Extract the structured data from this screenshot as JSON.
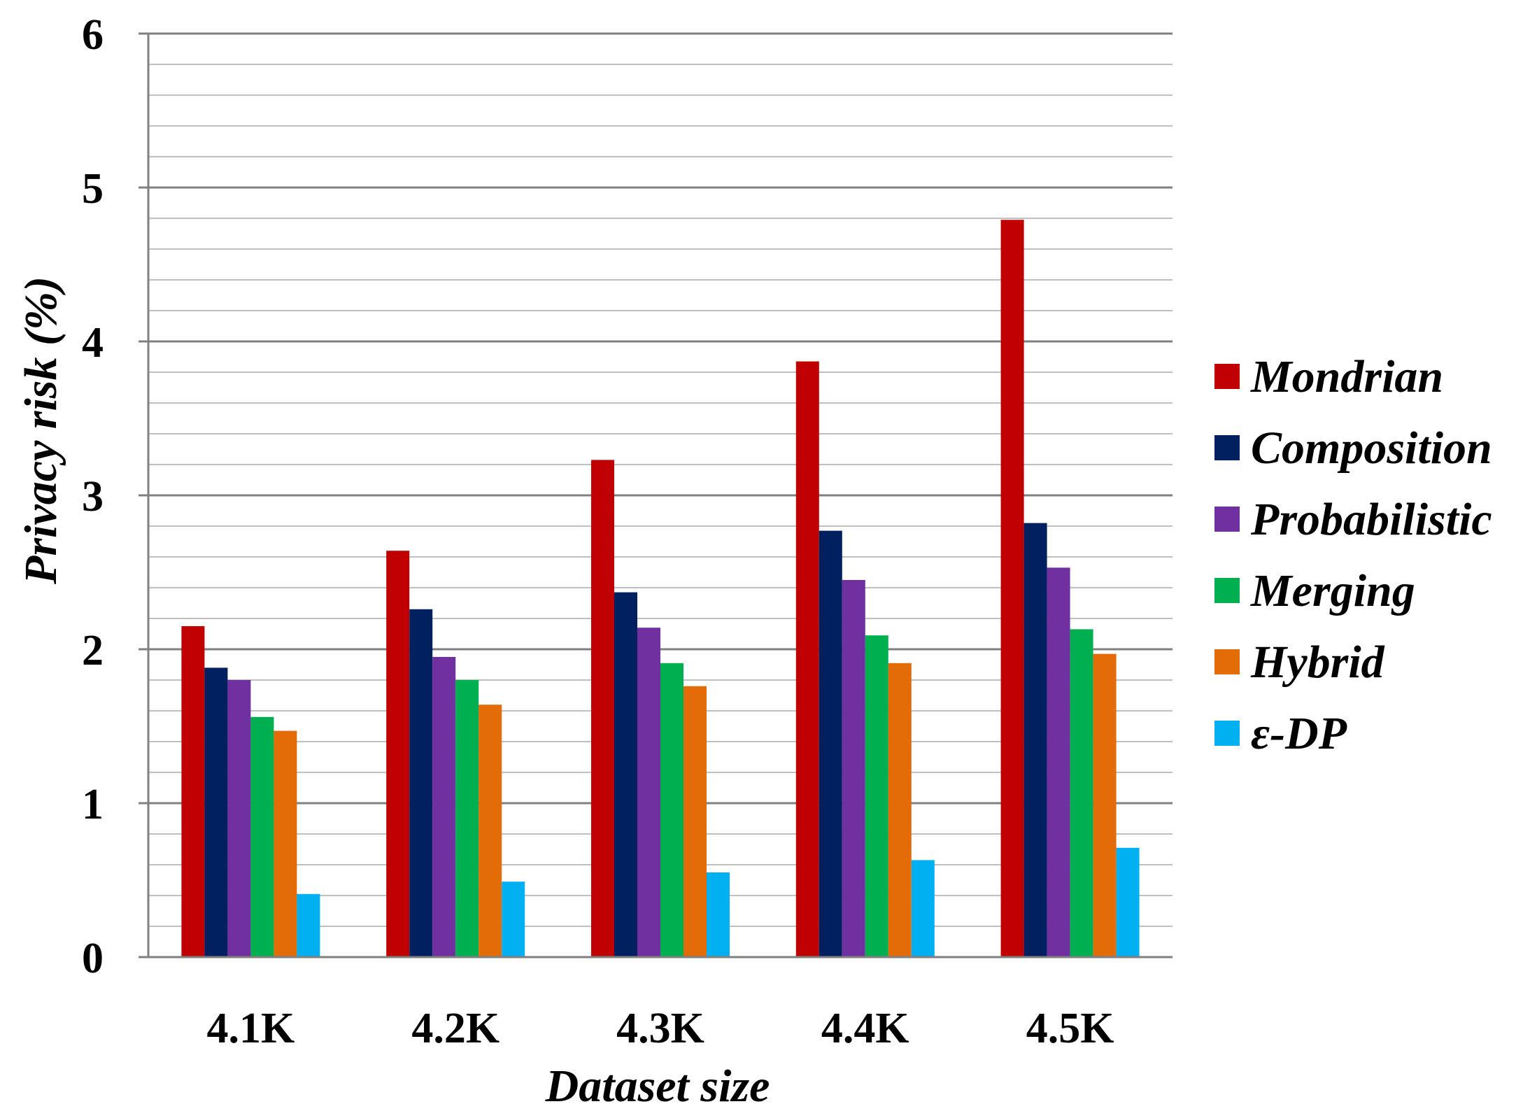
{
  "chart_data": {
    "type": "bar",
    "title": "",
    "xlabel": "Dataset size",
    "ylabel": "Privacy risk (%)",
    "ylim": [
      0,
      6
    ],
    "y_ticks": [
      "0",
      "1",
      "2",
      "3",
      "4",
      "5",
      "6"
    ],
    "y_minor_step": 0.2,
    "grid": true,
    "legend_position": "right",
    "categories": [
      "4.1K",
      "4.2K",
      "4.3K",
      "4.4K",
      "4.5K"
    ],
    "series": [
      {
        "name": "Mondrian",
        "color": "#c00000",
        "values": [
          2.15,
          2.64,
          3.23,
          3.87,
          4.79
        ]
      },
      {
        "name": "Composition",
        "color": "#002060",
        "values": [
          1.88,
          2.26,
          2.37,
          2.77,
          2.82
        ]
      },
      {
        "name": "Probabilistic",
        "color": "#7030a0",
        "values": [
          1.8,
          1.95,
          2.14,
          2.45,
          2.53
        ]
      },
      {
        "name": "Merging",
        "color": "#00b050",
        "values": [
          1.56,
          1.8,
          1.91,
          2.09,
          2.13
        ]
      },
      {
        "name": "Hybrid",
        "color": "#e36c09",
        "values": [
          1.47,
          1.64,
          1.76,
          1.91,
          1.97
        ]
      },
      {
        "name": "ε-DP",
        "color": "#00b0f0",
        "values": [
          0.41,
          0.49,
          0.55,
          0.63,
          0.71
        ]
      }
    ]
  }
}
